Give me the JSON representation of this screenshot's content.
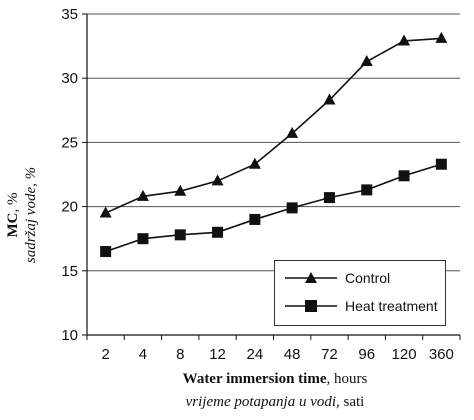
{
  "chart_data": {
    "type": "line",
    "categories": [
      "2",
      "4",
      "8",
      "12",
      "24",
      "48",
      "72",
      "96",
      "120",
      "360"
    ],
    "series": [
      {
        "name": "Control",
        "marker": "triangle",
        "values": [
          19.5,
          20.8,
          21.2,
          22.0,
          23.3,
          25.7,
          28.3,
          31.3,
          32.9,
          33.1
        ]
      },
      {
        "name": "Heat treatment",
        "marker": "square",
        "values": [
          16.5,
          17.5,
          17.8,
          18.0,
          19.0,
          19.9,
          20.7,
          21.3,
          22.4,
          23.3
        ]
      }
    ],
    "ylim": [
      10,
      35
    ],
    "yticks": [
      10,
      15,
      20,
      25,
      30,
      35
    ],
    "grid": "horizontal",
    "legend_position": "bottom-right",
    "ylabel": {
      "main": "MC",
      "unit": ", %",
      "sub": "sadržaj vode, %"
    },
    "xlabel": {
      "main": "Water immersion time",
      "unit": ", hours",
      "sub_italic": "vrijeme potapanja u vodi",
      "sub_rest": ", sati"
    }
  },
  "colors": {
    "line": "#111111",
    "grid": "#555555",
    "marker": "#111111"
  }
}
